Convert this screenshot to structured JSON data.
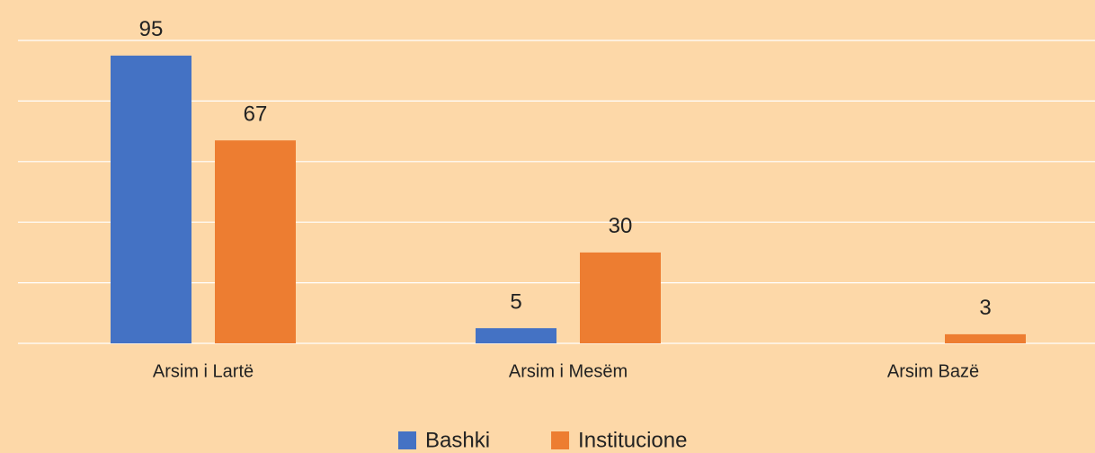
{
  "chart_data": {
    "type": "bar",
    "categories": [
      "Arsim i Lartë",
      "Arsim i Mesëm",
      "Arsim Bazë"
    ],
    "series": [
      {
        "name": "Bashki",
        "color": "#4472c4",
        "values": [
          95,
          5,
          null
        ]
      },
      {
        "name": "Institucione",
        "color": "#ed7d31",
        "values": [
          67,
          30,
          3
        ]
      }
    ],
    "ylim": [
      0,
      100
    ],
    "yticks": [
      0,
      20,
      40,
      60,
      80,
      100
    ],
    "grid": true,
    "legend": "bottom"
  }
}
